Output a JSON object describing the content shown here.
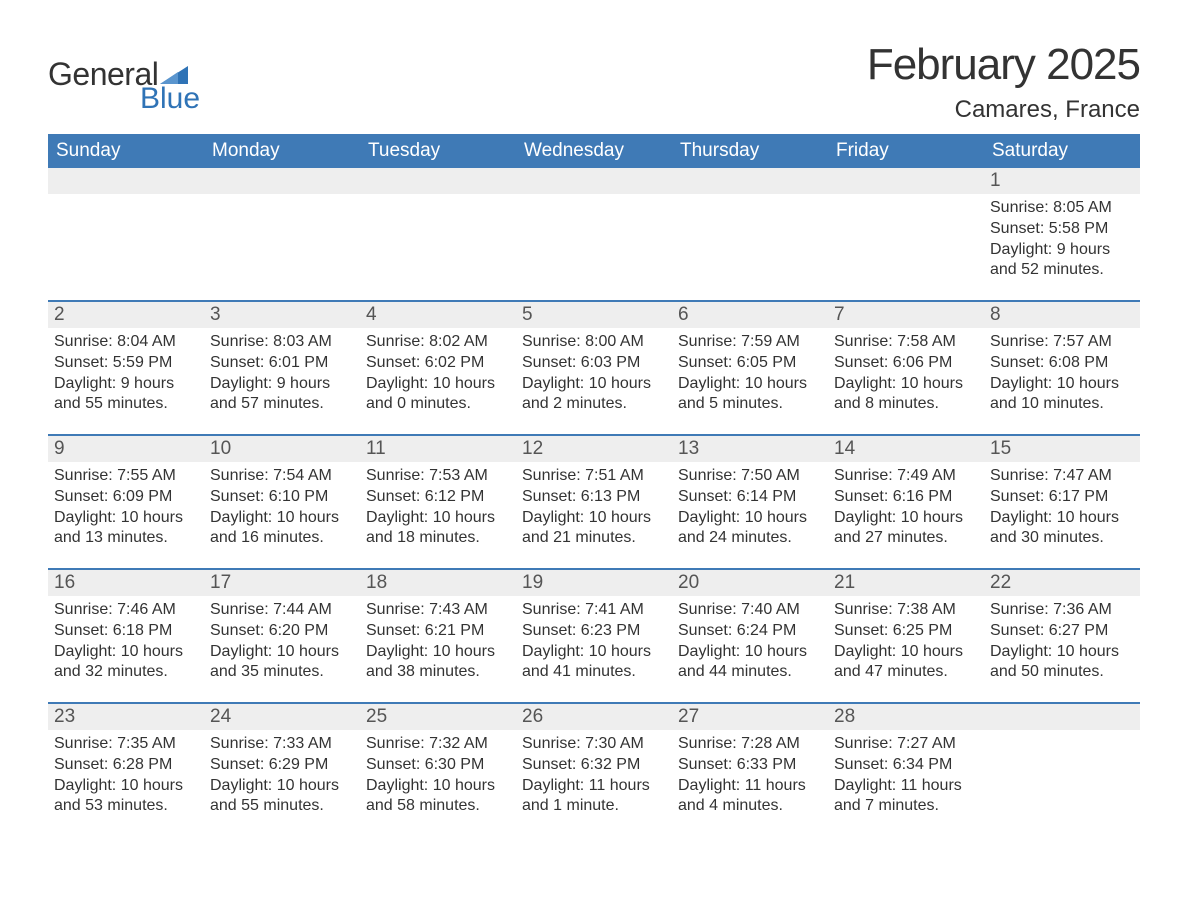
{
  "logo": {
    "text_general": "General",
    "text_blue": "Blue",
    "triangle_color": "#2f73b6"
  },
  "title": "February 2025",
  "location": "Camares, France",
  "colors": {
    "header_bg": "#3f7ab6",
    "header_text": "#ffffff",
    "daynum_bg": "#eeeeee",
    "week_divider": "#3f7ab6",
    "body_text": "#333333"
  },
  "weekdays": [
    "Sunday",
    "Monday",
    "Tuesday",
    "Wednesday",
    "Thursday",
    "Friday",
    "Saturday"
  ],
  "weeks": [
    [
      {
        "day": "",
        "sunrise": "",
        "sunset": "",
        "daylight": ""
      },
      {
        "day": "",
        "sunrise": "",
        "sunset": "",
        "daylight": ""
      },
      {
        "day": "",
        "sunrise": "",
        "sunset": "",
        "daylight": ""
      },
      {
        "day": "",
        "sunrise": "",
        "sunset": "",
        "daylight": ""
      },
      {
        "day": "",
        "sunrise": "",
        "sunset": "",
        "daylight": ""
      },
      {
        "day": "",
        "sunrise": "",
        "sunset": "",
        "daylight": ""
      },
      {
        "day": "1",
        "sunrise": "Sunrise: 8:05 AM",
        "sunset": "Sunset: 5:58 PM",
        "daylight": "Daylight: 9 hours and 52 minutes."
      }
    ],
    [
      {
        "day": "2",
        "sunrise": "Sunrise: 8:04 AM",
        "sunset": "Sunset: 5:59 PM",
        "daylight": "Daylight: 9 hours and 55 minutes."
      },
      {
        "day": "3",
        "sunrise": "Sunrise: 8:03 AM",
        "sunset": "Sunset: 6:01 PM",
        "daylight": "Daylight: 9 hours and 57 minutes."
      },
      {
        "day": "4",
        "sunrise": "Sunrise: 8:02 AM",
        "sunset": "Sunset: 6:02 PM",
        "daylight": "Daylight: 10 hours and 0 minutes."
      },
      {
        "day": "5",
        "sunrise": "Sunrise: 8:00 AM",
        "sunset": "Sunset: 6:03 PM",
        "daylight": "Daylight: 10 hours and 2 minutes."
      },
      {
        "day": "6",
        "sunrise": "Sunrise: 7:59 AM",
        "sunset": "Sunset: 6:05 PM",
        "daylight": "Daylight: 10 hours and 5 minutes."
      },
      {
        "day": "7",
        "sunrise": "Sunrise: 7:58 AM",
        "sunset": "Sunset: 6:06 PM",
        "daylight": "Daylight: 10 hours and 8 minutes."
      },
      {
        "day": "8",
        "sunrise": "Sunrise: 7:57 AM",
        "sunset": "Sunset: 6:08 PM",
        "daylight": "Daylight: 10 hours and 10 minutes."
      }
    ],
    [
      {
        "day": "9",
        "sunrise": "Sunrise: 7:55 AM",
        "sunset": "Sunset: 6:09 PM",
        "daylight": "Daylight: 10 hours and 13 minutes."
      },
      {
        "day": "10",
        "sunrise": "Sunrise: 7:54 AM",
        "sunset": "Sunset: 6:10 PM",
        "daylight": "Daylight: 10 hours and 16 minutes."
      },
      {
        "day": "11",
        "sunrise": "Sunrise: 7:53 AM",
        "sunset": "Sunset: 6:12 PM",
        "daylight": "Daylight: 10 hours and 18 minutes."
      },
      {
        "day": "12",
        "sunrise": "Sunrise: 7:51 AM",
        "sunset": "Sunset: 6:13 PM",
        "daylight": "Daylight: 10 hours and 21 minutes."
      },
      {
        "day": "13",
        "sunrise": "Sunrise: 7:50 AM",
        "sunset": "Sunset: 6:14 PM",
        "daylight": "Daylight: 10 hours and 24 minutes."
      },
      {
        "day": "14",
        "sunrise": "Sunrise: 7:49 AM",
        "sunset": "Sunset: 6:16 PM",
        "daylight": "Daylight: 10 hours and 27 minutes."
      },
      {
        "day": "15",
        "sunrise": "Sunrise: 7:47 AM",
        "sunset": "Sunset: 6:17 PM",
        "daylight": "Daylight: 10 hours and 30 minutes."
      }
    ],
    [
      {
        "day": "16",
        "sunrise": "Sunrise: 7:46 AM",
        "sunset": "Sunset: 6:18 PM",
        "daylight": "Daylight: 10 hours and 32 minutes."
      },
      {
        "day": "17",
        "sunrise": "Sunrise: 7:44 AM",
        "sunset": "Sunset: 6:20 PM",
        "daylight": "Daylight: 10 hours and 35 minutes."
      },
      {
        "day": "18",
        "sunrise": "Sunrise: 7:43 AM",
        "sunset": "Sunset: 6:21 PM",
        "daylight": "Daylight: 10 hours and 38 minutes."
      },
      {
        "day": "19",
        "sunrise": "Sunrise: 7:41 AM",
        "sunset": "Sunset: 6:23 PM",
        "daylight": "Daylight: 10 hours and 41 minutes."
      },
      {
        "day": "20",
        "sunrise": "Sunrise: 7:40 AM",
        "sunset": "Sunset: 6:24 PM",
        "daylight": "Daylight: 10 hours and 44 minutes."
      },
      {
        "day": "21",
        "sunrise": "Sunrise: 7:38 AM",
        "sunset": "Sunset: 6:25 PM",
        "daylight": "Daylight: 10 hours and 47 minutes."
      },
      {
        "day": "22",
        "sunrise": "Sunrise: 7:36 AM",
        "sunset": "Sunset: 6:27 PM",
        "daylight": "Daylight: 10 hours and 50 minutes."
      }
    ],
    [
      {
        "day": "23",
        "sunrise": "Sunrise: 7:35 AM",
        "sunset": "Sunset: 6:28 PM",
        "daylight": "Daylight: 10 hours and 53 minutes."
      },
      {
        "day": "24",
        "sunrise": "Sunrise: 7:33 AM",
        "sunset": "Sunset: 6:29 PM",
        "daylight": "Daylight: 10 hours and 55 minutes."
      },
      {
        "day": "25",
        "sunrise": "Sunrise: 7:32 AM",
        "sunset": "Sunset: 6:30 PM",
        "daylight": "Daylight: 10 hours and 58 minutes."
      },
      {
        "day": "26",
        "sunrise": "Sunrise: 7:30 AM",
        "sunset": "Sunset: 6:32 PM",
        "daylight": "Daylight: 11 hours and 1 minute."
      },
      {
        "day": "27",
        "sunrise": "Sunrise: 7:28 AM",
        "sunset": "Sunset: 6:33 PM",
        "daylight": "Daylight: 11 hours and 4 minutes."
      },
      {
        "day": "28",
        "sunrise": "Sunrise: 7:27 AM",
        "sunset": "Sunset: 6:34 PM",
        "daylight": "Daylight: 11 hours and 7 minutes."
      },
      {
        "day": "",
        "sunrise": "",
        "sunset": "",
        "daylight": ""
      }
    ]
  ]
}
